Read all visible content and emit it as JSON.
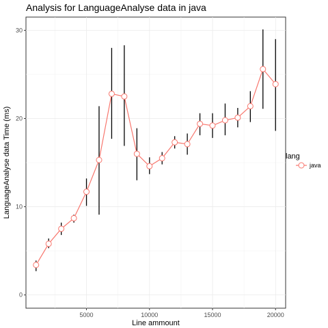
{
  "chart_data": {
    "type": "line",
    "title": "Analysis for LanguageAnalyse data in java",
    "xlabel": "Line ammount",
    "ylabel": "LanguageAnalyse data Time (ms)",
    "xlim": [
      200,
      20800
    ],
    "ylim": [
      -1.5,
      31.5
    ],
    "x_ticks": [
      5000,
      10000,
      15000,
      20000
    ],
    "x_tick_labels": [
      "5000",
      "10000",
      "15000",
      "20000"
    ],
    "y_ticks": [
      0,
      10,
      20,
      30
    ],
    "y_tick_labels": [
      "0",
      "10",
      "20",
      "30"
    ],
    "grid": true,
    "legend": {
      "title": "lang",
      "position": "right"
    },
    "series": [
      {
        "name": "java",
        "color": "#f8766d",
        "x": [
          1000,
          2000,
          3000,
          4000,
          5000,
          6000,
          7000,
          8000,
          9000,
          10000,
          11000,
          12000,
          13000,
          14000,
          15000,
          16000,
          17000,
          18000,
          19000,
          20000
        ],
        "y": [
          3.4,
          5.8,
          7.5,
          8.7,
          11.7,
          15.3,
          22.8,
          22.5,
          16.0,
          14.6,
          15.5,
          17.3,
          17.1,
          19.4,
          19.2,
          19.8,
          20.1,
          21.4,
          25.6,
          23.9
        ],
        "err_low": [
          2.7,
          5.3,
          6.8,
          8.2,
          10.1,
          9.1,
          17.7,
          16.9,
          13.0,
          13.7,
          14.8,
          16.6,
          15.9,
          18.1,
          17.8,
          18.1,
          19.0,
          19.6,
          21.1,
          18.6
        ],
        "err_high": [
          3.9,
          6.4,
          8.2,
          9.1,
          13.2,
          21.4,
          28.0,
          28.3,
          18.9,
          15.6,
          16.2,
          18.0,
          18.3,
          20.6,
          20.6,
          21.7,
          21.2,
          23.1,
          30.1,
          29.0
        ]
      }
    ]
  }
}
